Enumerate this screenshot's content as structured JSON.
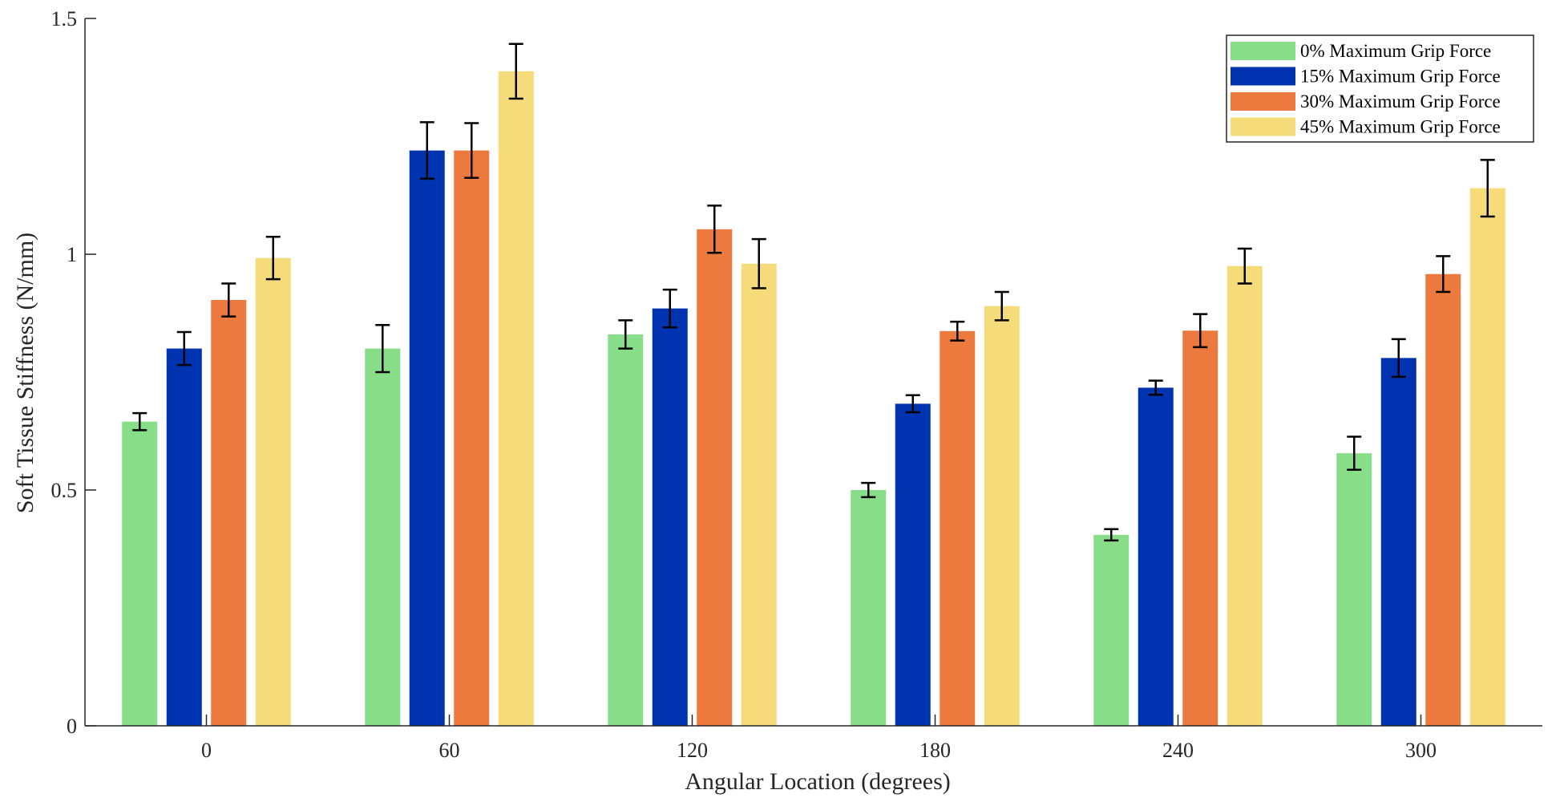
{
  "chart_data": {
    "type": "bar",
    "title": "",
    "xlabel": "Angular Location (degrees)",
    "ylabel": "Soft Tissue Stiffness (N/mm)",
    "categories": [
      "0",
      "60",
      "120",
      "180",
      "240",
      "300"
    ],
    "ylim": [
      0,
      1.5
    ],
    "yticks": [
      0,
      0.5,
      1,
      1.5
    ],
    "ytick_labels": [
      "0",
      "0.5",
      "1",
      "1.5"
    ],
    "grid": false,
    "legend_position": "top-right",
    "series": [
      {
        "name": "0% Maximum Grip Force",
        "color": "#88dd88",
        "values": [
          0.645,
          0.8,
          0.83,
          0.5,
          0.405,
          0.578
        ],
        "errors": [
          0.018,
          0.05,
          0.03,
          0.015,
          0.012,
          0.035
        ]
      },
      {
        "name": "15% Maximum Grip Force",
        "color": "#0033b0",
        "values": [
          0.8,
          1.22,
          0.885,
          0.683,
          0.717,
          0.78
        ],
        "errors": [
          0.035,
          0.06,
          0.04,
          0.018,
          0.015,
          0.04
        ]
      },
      {
        "name": "30% Maximum Grip Force",
        "color": "#ec7a3e",
        "values": [
          0.903,
          1.22,
          1.053,
          0.837,
          0.838,
          0.958
        ],
        "errors": [
          0.035,
          0.058,
          0.05,
          0.02,
          0.035,
          0.038
        ]
      },
      {
        "name": "45% Maximum Grip Force",
        "color": "#f5db7a",
        "values": [
          0.992,
          1.388,
          0.98,
          0.89,
          0.975,
          1.14
        ],
        "errors": [
          0.045,
          0.058,
          0.052,
          0.03,
          0.037,
          0.06
        ]
      }
    ]
  }
}
